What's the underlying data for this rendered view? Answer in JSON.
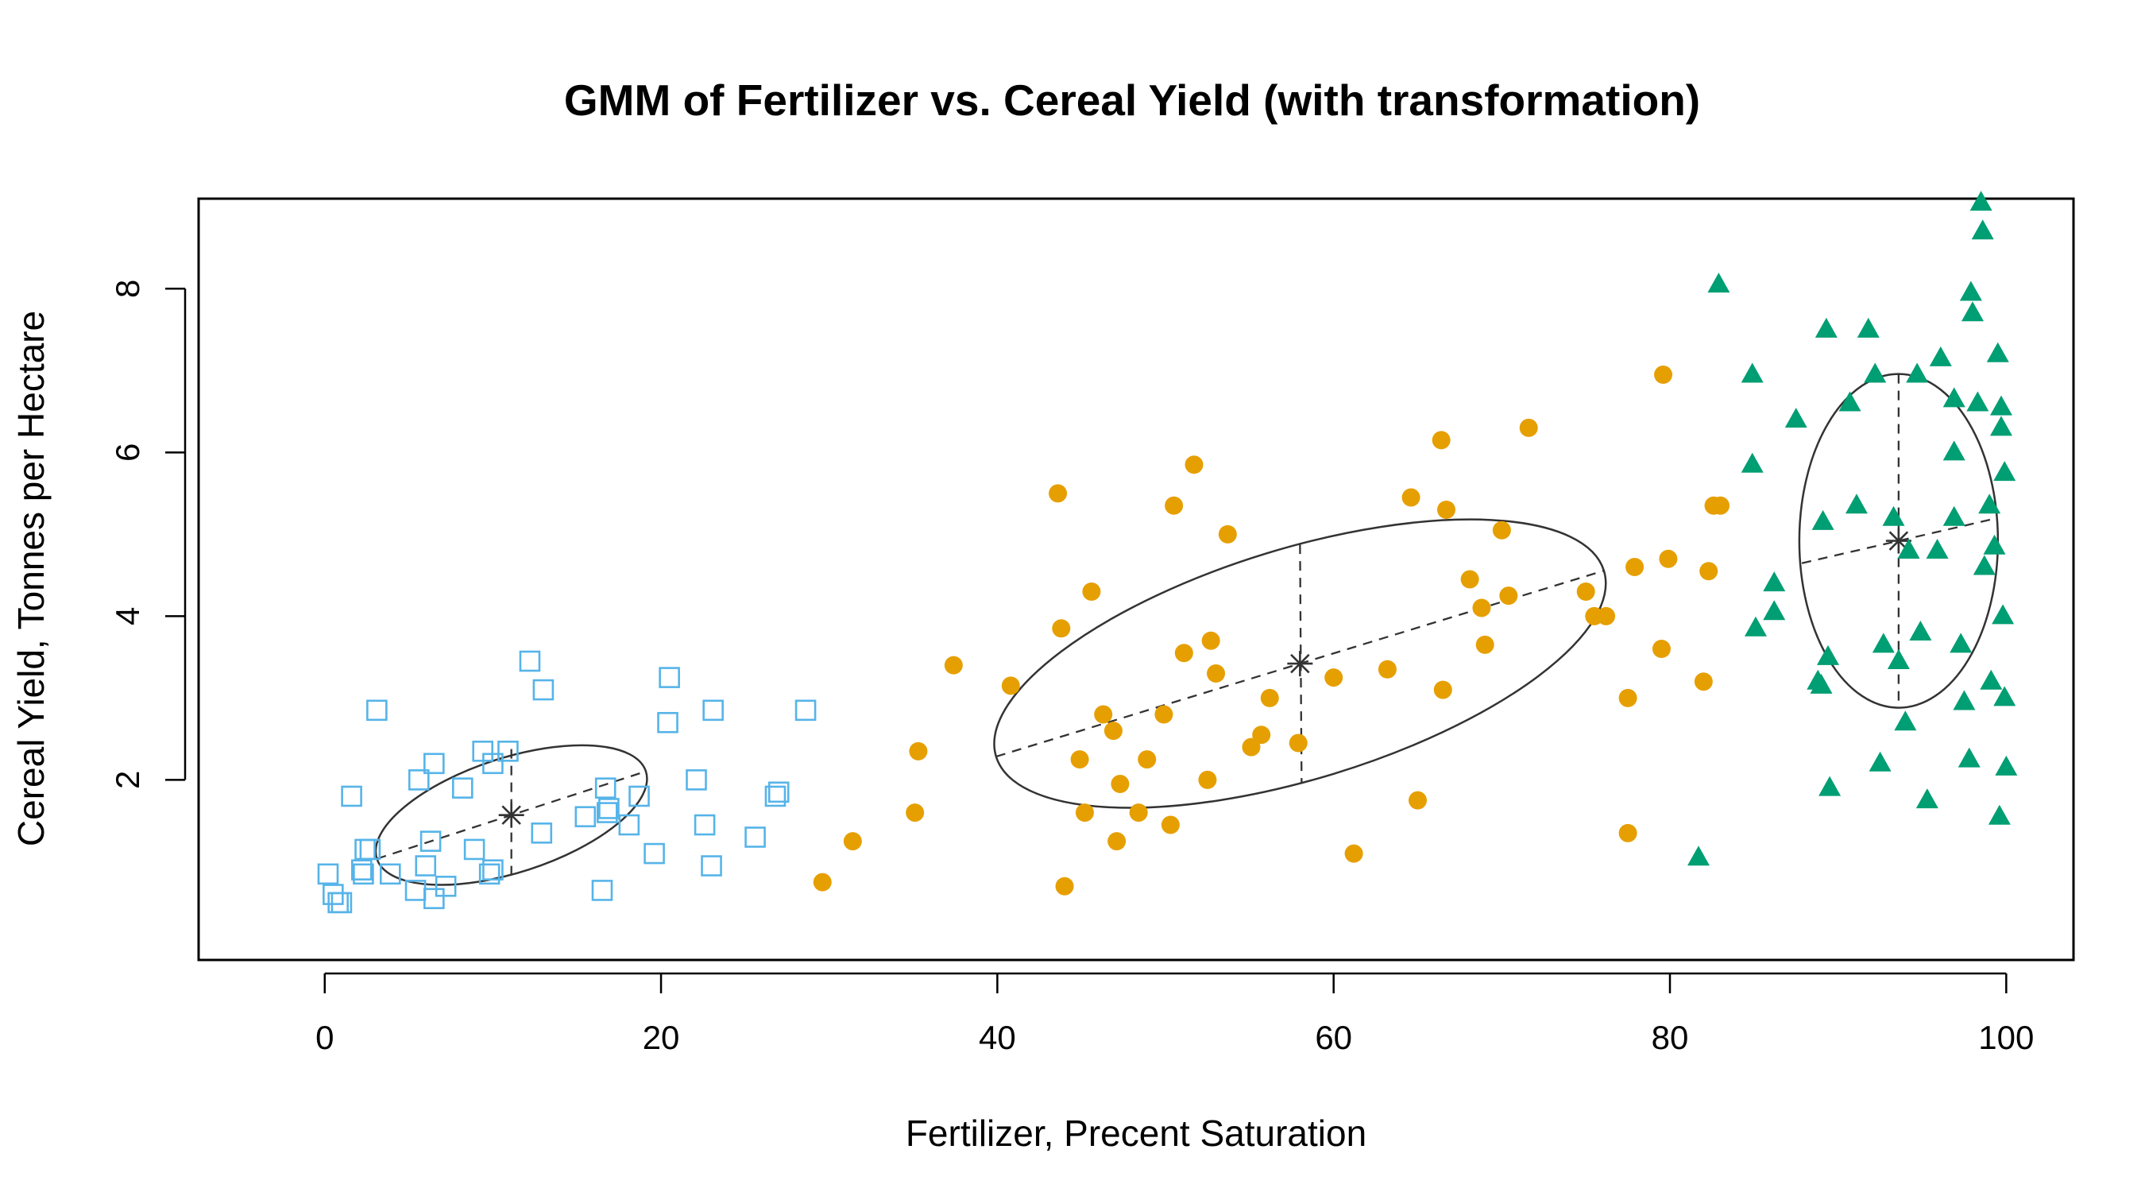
{
  "chart_data": {
    "type": "scatter",
    "title": "GMM of Fertilizer vs. Cereal Yield (with transformation)",
    "xlabel": "Fertilizer, Precent Saturation",
    "ylabel": "Cereal Yield, Tonnes per Hectare",
    "xlim": [
      -7.5,
      104
    ],
    "ylim": [
      -0.2,
      9.1
    ],
    "xticks": [
      "0",
      "20",
      "40",
      "60",
      "80",
      "100"
    ],
    "yticks": [
      "2",
      "4",
      "6",
      "8"
    ],
    "grid": false,
    "legend": "none",
    "series": [
      {
        "marker": "open-square",
        "color": "#56B4E9",
        "points": [
          [
            0.2,
            0.85
          ],
          [
            0.5,
            0.6
          ],
          [
            0.8,
            0.5
          ],
          [
            1.0,
            0.5
          ],
          [
            1.6,
            1.8
          ],
          [
            2.2,
            0.9
          ],
          [
            2.3,
            0.85
          ],
          [
            2.4,
            1.15
          ],
          [
            2.7,
            1.15
          ],
          [
            3.1,
            2.85
          ],
          [
            3.9,
            0.85
          ],
          [
            5.4,
            0.65
          ],
          [
            5.6,
            2.0
          ],
          [
            6.0,
            0.95
          ],
          [
            6.3,
            1.25
          ],
          [
            6.5,
            2.2
          ],
          [
            6.5,
            0.55
          ],
          [
            7.2,
            0.7
          ],
          [
            8.2,
            1.9
          ],
          [
            8.9,
            1.15
          ],
          [
            9.4,
            2.35
          ],
          [
            9.8,
            0.85
          ],
          [
            10.0,
            0.9
          ],
          [
            10.0,
            2.2
          ],
          [
            10.9,
            2.35
          ],
          [
            12.2,
            3.45
          ],
          [
            12.9,
            1.35
          ],
          [
            13.0,
            3.1
          ],
          [
            15.5,
            1.55
          ],
          [
            16.5,
            0.65
          ],
          [
            16.7,
            1.9
          ],
          [
            16.8,
            1.6
          ],
          [
            16.9,
            1.65
          ],
          [
            18.1,
            1.45
          ],
          [
            18.7,
            1.8
          ],
          [
            19.6,
            1.1
          ],
          [
            20.4,
            2.7
          ],
          [
            20.5,
            3.25
          ],
          [
            22.1,
            2.0
          ],
          [
            22.6,
            1.45
          ],
          [
            23.0,
            0.95
          ],
          [
            23.1,
            2.85
          ],
          [
            25.6,
            1.3
          ],
          [
            26.8,
            1.8
          ],
          [
            27.0,
            1.85
          ],
          [
            28.6,
            2.85
          ]
        ]
      },
      {
        "marker": "filled-circle",
        "color": "#E69F00",
        "points": [
          [
            29.6,
            0.75
          ],
          [
            31.4,
            1.25
          ],
          [
            35.1,
            1.6
          ],
          [
            35.3,
            2.35
          ],
          [
            37.4,
            3.4
          ],
          [
            40.8,
            3.15
          ],
          [
            43.6,
            5.5
          ],
          [
            43.8,
            3.85
          ],
          [
            44.0,
            0.7
          ],
          [
            44.9,
            2.25
          ],
          [
            45.2,
            1.6
          ],
          [
            45.6,
            4.3
          ],
          [
            46.3,
            2.8
          ],
          [
            46.9,
            2.6
          ],
          [
            47.1,
            1.25
          ],
          [
            47.3,
            1.95
          ],
          [
            48.4,
            1.6
          ],
          [
            48.9,
            2.25
          ],
          [
            49.9,
            2.8
          ],
          [
            50.3,
            1.45
          ],
          [
            50.5,
            5.35
          ],
          [
            51.1,
            3.55
          ],
          [
            51.7,
            5.85
          ],
          [
            52.5,
            2.0
          ],
          [
            52.7,
            3.7
          ],
          [
            53.0,
            3.3
          ],
          [
            53.7,
            5.0
          ],
          [
            55.1,
            2.4
          ],
          [
            55.7,
            2.55
          ],
          [
            56.2,
            3.0
          ],
          [
            57.9,
            2.45
          ],
          [
            60.0,
            3.25
          ],
          [
            61.2,
            1.1
          ],
          [
            63.2,
            3.35
          ],
          [
            64.6,
            5.45
          ],
          [
            65.0,
            1.75
          ],
          [
            66.4,
            6.15
          ],
          [
            66.5,
            3.1
          ],
          [
            66.7,
            5.3
          ],
          [
            68.1,
            4.45
          ],
          [
            68.8,
            4.1
          ],
          [
            69.0,
            3.65
          ],
          [
            70.0,
            5.05
          ],
          [
            70.4,
            4.25
          ],
          [
            71.6,
            6.3
          ],
          [
            75.0,
            4.3
          ],
          [
            75.5,
            4.0
          ],
          [
            76.2,
            4.0
          ],
          [
            77.5,
            1.35
          ],
          [
            77.5,
            3.0
          ],
          [
            77.9,
            4.6
          ],
          [
            79.6,
            6.95
          ],
          [
            79.5,
            3.6
          ],
          [
            79.9,
            4.7
          ],
          [
            82.0,
            3.2
          ],
          [
            82.3,
            4.55
          ],
          [
            82.6,
            5.35
          ],
          [
            83.0,
            5.35
          ]
        ]
      },
      {
        "marker": "filled-triangle",
        "color": "#009E73",
        "points": [
          [
            81.7,
            1.05
          ],
          [
            82.9,
            8.05
          ],
          [
            84.9,
            6.95
          ],
          [
            84.9,
            5.85
          ],
          [
            85.1,
            3.85
          ],
          [
            86.2,
            4.4
          ],
          [
            86.2,
            4.05
          ],
          [
            87.5,
            6.4
          ],
          [
            88.8,
            3.2
          ],
          [
            89.0,
            3.15
          ],
          [
            89.1,
            5.15
          ],
          [
            89.3,
            7.5
          ],
          [
            89.4,
            3.5
          ],
          [
            89.5,
            1.9
          ],
          [
            90.7,
            6.6
          ],
          [
            91.1,
            5.35
          ],
          [
            91.8,
            7.5
          ],
          [
            92.2,
            6.95
          ],
          [
            92.5,
            2.2
          ],
          [
            92.7,
            3.65
          ],
          [
            93.3,
            5.2
          ],
          [
            93.6,
            3.45
          ],
          [
            94.0,
            2.7
          ],
          [
            94.2,
            4.8
          ],
          [
            94.7,
            6.95
          ],
          [
            94.9,
            3.8
          ],
          [
            95.3,
            1.75
          ],
          [
            95.9,
            4.8
          ],
          [
            96.1,
            7.15
          ],
          [
            96.9,
            6.65
          ],
          [
            96.9,
            5.2
          ],
          [
            96.9,
            6.0
          ],
          [
            97.3,
            3.65
          ],
          [
            97.5,
            2.95
          ],
          [
            97.8,
            2.25
          ],
          [
            97.9,
            7.95
          ],
          [
            98.0,
            7.7
          ],
          [
            98.3,
            6.6
          ],
          [
            98.5,
            9.05
          ],
          [
            98.6,
            8.7
          ],
          [
            98.7,
            4.6
          ],
          [
            99.0,
            5.35
          ],
          [
            99.1,
            3.2
          ],
          [
            99.3,
            4.85
          ],
          [
            99.5,
            7.2
          ],
          [
            99.6,
            1.55
          ],
          [
            99.7,
            6.55
          ],
          [
            99.7,
            6.3
          ],
          [
            99.8,
            4.0
          ],
          [
            99.9,
            5.75
          ],
          [
            99.9,
            3.0
          ],
          [
            100.0,
            2.15
          ]
        ]
      }
    ],
    "components": [
      {
        "center": [
          11.1,
          1.57
        ],
        "ellipse_color": "#333333",
        "center_marker": "asterisk"
      },
      {
        "center": [
          58.0,
          3.42
        ],
        "ellipse_color": "#333333",
        "center_marker": "asterisk"
      },
      {
        "center": [
          93.6,
          4.92
        ],
        "ellipse_color": "#333333",
        "center_marker": "asterisk"
      }
    ]
  }
}
